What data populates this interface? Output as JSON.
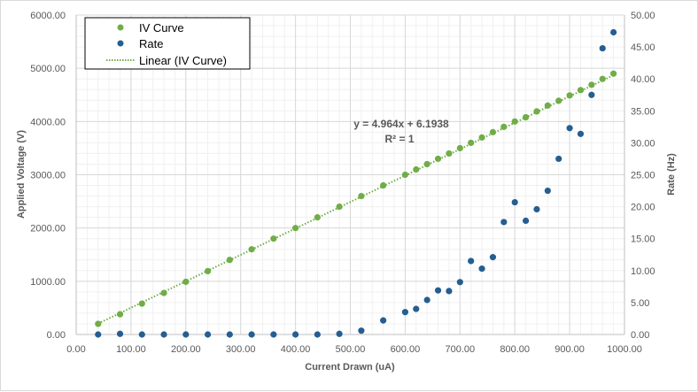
{
  "chart_data": {
    "type": "scatter",
    "title": "",
    "xlabel": "Current Drawn (uA)",
    "ylabel": "Applied Voltage (V)",
    "y2label": "Rate (Hz)",
    "xlim": [
      0,
      1000
    ],
    "ylim": [
      0,
      6000
    ],
    "y2lim": [
      0,
      50
    ],
    "x_ticks": [
      "0.00",
      "100.00",
      "200.00",
      "300.00",
      "400.00",
      "500.00",
      "600.00",
      "700.00",
      "800.00",
      "900.00",
      "1000.00"
    ],
    "y_ticks": [
      "0.00",
      "1000.00",
      "2000.00",
      "3000.00",
      "4000.00",
      "5000.00",
      "6000.00"
    ],
    "y2_ticks": [
      "0.00",
      "5.00",
      "10.00",
      "15.00",
      "20.00",
      "25.00",
      "30.00",
      "35.00",
      "40.00",
      "45.00",
      "50.00"
    ],
    "grid": true,
    "legend_position": "top-left",
    "colors": {
      "iv": "#70ad47",
      "rate": "#255e91",
      "trend": "#70ad47"
    },
    "trendline": {
      "name": "Linear (IV Curve)",
      "slope": 4.964,
      "intercept": 6.1938,
      "equation": "y = 4.964x + 6.1938",
      "r2": "R² = 1"
    },
    "series": [
      {
        "name": "IV Curve",
        "axis": "left",
        "points": [
          [
            40,
            200
          ],
          [
            80,
            380
          ],
          [
            120,
            580
          ],
          [
            160,
            780
          ],
          [
            200,
            990
          ],
          [
            240,
            1190
          ],
          [
            280,
            1400
          ],
          [
            320,
            1600
          ],
          [
            360,
            1800
          ],
          [
            400,
            2000
          ],
          [
            440,
            2200
          ],
          [
            480,
            2400
          ],
          [
            520,
            2600
          ],
          [
            560,
            2800
          ],
          [
            600,
            3000
          ],
          [
            620,
            3100
          ],
          [
            640,
            3200
          ],
          [
            660,
            3300
          ],
          [
            680,
            3400
          ],
          [
            700,
            3500
          ],
          [
            720,
            3600
          ],
          [
            740,
            3700
          ],
          [
            760,
            3800
          ],
          [
            780,
            3900
          ],
          [
            800,
            4000
          ],
          [
            820,
            4080
          ],
          [
            840,
            4190
          ],
          [
            860,
            4300
          ],
          [
            880,
            4390
          ],
          [
            900,
            4490
          ],
          [
            920,
            4590
          ],
          [
            940,
            4690
          ],
          [
            960,
            4800
          ],
          [
            980,
            4900
          ]
        ]
      },
      {
        "name": "Rate",
        "axis": "right",
        "points": [
          [
            40,
            0
          ],
          [
            80,
            0.1
          ],
          [
            120,
            0
          ],
          [
            160,
            0
          ],
          [
            200,
            0
          ],
          [
            240,
            0
          ],
          [
            280,
            0
          ],
          [
            320,
            0
          ],
          [
            360,
            0
          ],
          [
            400,
            0
          ],
          [
            440,
            0
          ],
          [
            480,
            0.1
          ],
          [
            520,
            0.6
          ],
          [
            560,
            2.2
          ],
          [
            600,
            3.5
          ],
          [
            620,
            4.0
          ],
          [
            640,
            5.4
          ],
          [
            660,
            6.9
          ],
          [
            680,
            6.8
          ],
          [
            700,
            8.2
          ],
          [
            720,
            11.5
          ],
          [
            740,
            10.3
          ],
          [
            760,
            12.1
          ],
          [
            780,
            17.6
          ],
          [
            800,
            20.7
          ],
          [
            820,
            17.8
          ],
          [
            840,
            19.6
          ],
          [
            860,
            22.5
          ],
          [
            880,
            27.5
          ],
          [
            900,
            32.3
          ],
          [
            920,
            31.4
          ],
          [
            940,
            37.5
          ],
          [
            960,
            44.8
          ],
          [
            980,
            47.3
          ]
        ]
      }
    ]
  }
}
